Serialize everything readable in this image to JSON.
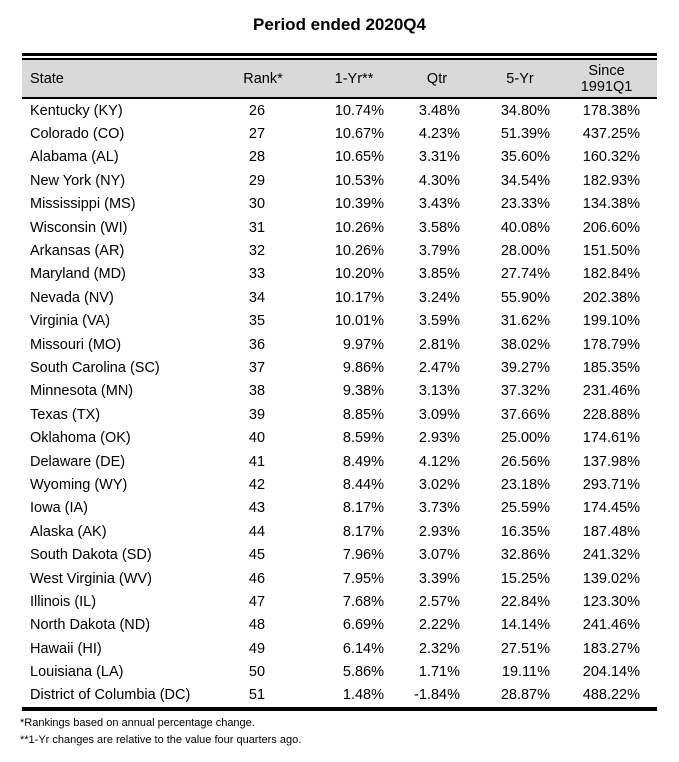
{
  "page": {
    "title": "Period ended 2020Q4"
  },
  "colors": {
    "header_bg": "#d9d9d9",
    "rule": "#000000",
    "text": "#000000"
  },
  "table": {
    "columns": [
      {
        "label": "State"
      },
      {
        "label": "Rank*"
      },
      {
        "label": "1-Yr**"
      },
      {
        "label": "Qtr"
      },
      {
        "label": "5-Yr"
      },
      {
        "label": "Since",
        "label2": "1991Q1"
      }
    ],
    "rows": [
      [
        "Kentucky (KY)",
        "26",
        "10.74%",
        "3.48%",
        "34.80%",
        "178.38%"
      ],
      [
        "Colorado (CO)",
        "27",
        "10.67%",
        "4.23%",
        "51.39%",
        "437.25%"
      ],
      [
        "Alabama (AL)",
        "28",
        "10.65%",
        "3.31%",
        "35.60%",
        "160.32%"
      ],
      [
        "New York (NY)",
        "29",
        "10.53%",
        "4.30%",
        "34.54%",
        "182.93%"
      ],
      [
        "Mississippi (MS)",
        "30",
        "10.39%",
        "3.43%",
        "23.33%",
        "134.38%"
      ],
      [
        "Wisconsin (WI)",
        "31",
        "10.26%",
        "3.58%",
        "40.08%",
        "206.60%"
      ],
      [
        "Arkansas (AR)",
        "32",
        "10.26%",
        "3.79%",
        "28.00%",
        "151.50%"
      ],
      [
        "Maryland (MD)",
        "33",
        "10.20%",
        "3.85%",
        "27.74%",
        "182.84%"
      ],
      [
        "Nevada (NV)",
        "34",
        "10.17%",
        "3.24%",
        "55.90%",
        "202.38%"
      ],
      [
        "Virginia (VA)",
        "35",
        "10.01%",
        "3.59%",
        "31.62%",
        "199.10%"
      ],
      [
        "Missouri (MO)",
        "36",
        "9.97%",
        "2.81%",
        "38.02%",
        "178.79%"
      ],
      [
        "South Carolina (SC)",
        "37",
        "9.86%",
        "2.47%",
        "39.27%",
        "185.35%"
      ],
      [
        "Minnesota (MN)",
        "38",
        "9.38%",
        "3.13%",
        "37.32%",
        "231.46%"
      ],
      [
        "Texas (TX)",
        "39",
        "8.85%",
        "3.09%",
        "37.66%",
        "228.88%"
      ],
      [
        "Oklahoma (OK)",
        "40",
        "8.59%",
        "2.93%",
        "25.00%",
        "174.61%"
      ],
      [
        "Delaware (DE)",
        "41",
        "8.49%",
        "4.12%",
        "26.56%",
        "137.98%"
      ],
      [
        "Wyoming (WY)",
        "42",
        "8.44%",
        "3.02%",
        "23.18%",
        "293.71%"
      ],
      [
        "Iowa (IA)",
        "43",
        "8.17%",
        "3.73%",
        "25.59%",
        "174.45%"
      ],
      [
        "Alaska (AK)",
        "44",
        "8.17%",
        "2.93%",
        "16.35%",
        "187.48%"
      ],
      [
        "South Dakota (SD)",
        "45",
        "7.96%",
        "3.07%",
        "32.86%",
        "241.32%"
      ],
      [
        "West Virginia (WV)",
        "46",
        "7.95%",
        "3.39%",
        "15.25%",
        "139.02%"
      ],
      [
        "Illinois (IL)",
        "47",
        "7.68%",
        "2.57%",
        "22.84%",
        "123.30%"
      ],
      [
        "North Dakota (ND)",
        "48",
        "6.69%",
        "2.22%",
        "14.14%",
        "241.46%"
      ],
      [
        "Hawaii (HI)",
        "49",
        "6.14%",
        "2.32%",
        "27.51%",
        "183.27%"
      ],
      [
        "Louisiana (LA)",
        "50",
        "5.86%",
        "1.71%",
        "19.11%",
        "204.14%"
      ],
      [
        "District of Columbia (DC)",
        "51",
        "1.48%",
        "-1.84%",
        "28.87%",
        "488.22%"
      ]
    ]
  },
  "footnotes": {
    "line1": "*Rankings based on annual percentage change.",
    "line2": "**1-Yr changes are relative to the value four quarters ago."
  }
}
